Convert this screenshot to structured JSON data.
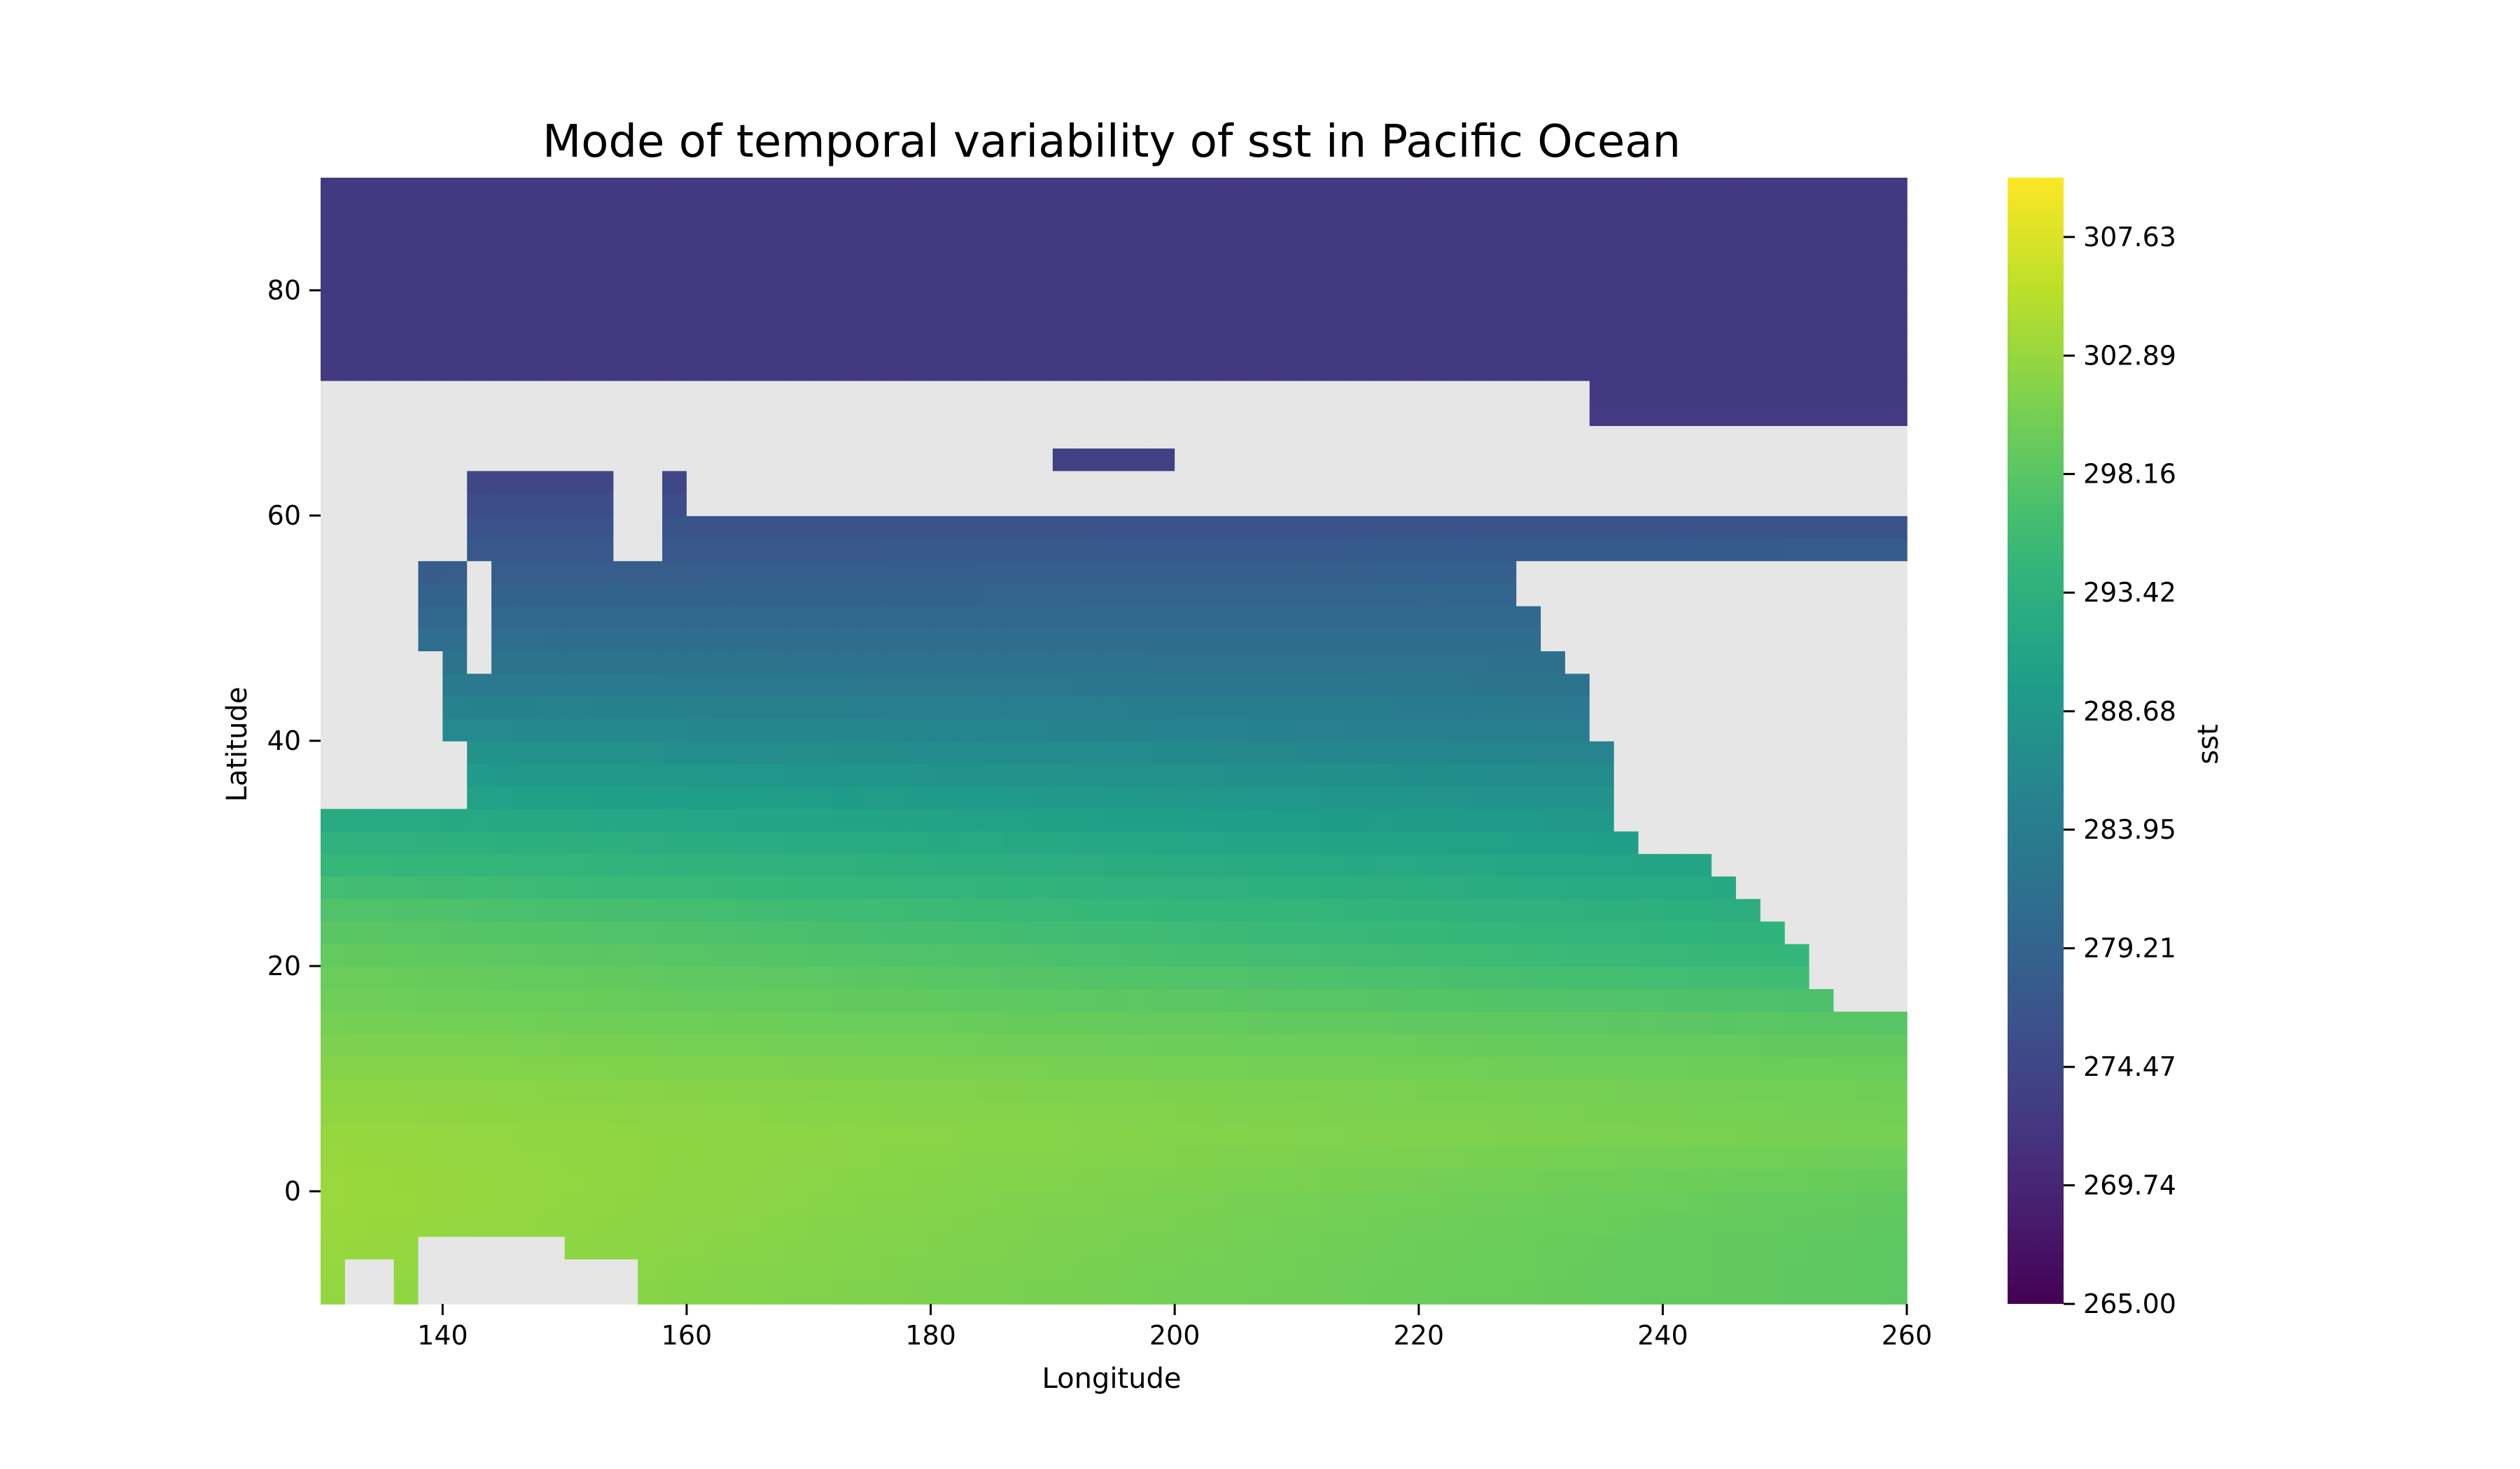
{
  "chart_data": {
    "type": "heatmap",
    "title": "Mode of temporal variability of sst in Pacific Ocean",
    "xlabel": "Longitude",
    "ylabel": "Latitude",
    "xlim": [
      130,
      260
    ],
    "ylim": [
      -10,
      90
    ],
    "xticks": [
      140,
      160,
      180,
      200,
      220,
      240,
      260
    ],
    "yticks": [
      0,
      20,
      40,
      60,
      80
    ],
    "grid": false,
    "legend": "none",
    "land_color": "#e6e6e6",
    "colorscale": "viridis",
    "colorbar": {
      "label": "sst",
      "range": [
        265.0,
        310.0
      ],
      "ticks": [
        "265.00",
        "269.74",
        "274.47",
        "279.21",
        "283.95",
        "288.68",
        "293.42",
        "298.16",
        "302.89",
        "307.63"
      ],
      "placement": "right"
    },
    "sst_by_latitude": {
      "lat": [
        -10,
        -5,
        0,
        5,
        10,
        15,
        20,
        25,
        30,
        35,
        40,
        45,
        50,
        55,
        60,
        65,
        70,
        75,
        80,
        85,
        90
      ],
      "west_pacific": [
        302.5,
        303.0,
        303.2,
        302.8,
        302.0,
        300.5,
        299.5,
        297.5,
        294.5,
        291.0,
        287.5,
        283.5,
        280.5,
        278.0,
        276.0,
        273.5,
        272.5,
        272.5,
        272.5,
        272.5,
        272.5
      ],
      "east_pacific": [
        298.5,
        298.5,
        299.0,
        300.5,
        300.0,
        298.0,
        295.0,
        292.5,
        290.0,
        287.0,
        284.0,
        282.0,
        280.5,
        279.0,
        276.0,
        273.5,
        272.5,
        272.5,
        272.5,
        272.5,
        272.5
      ]
    }
  }
}
